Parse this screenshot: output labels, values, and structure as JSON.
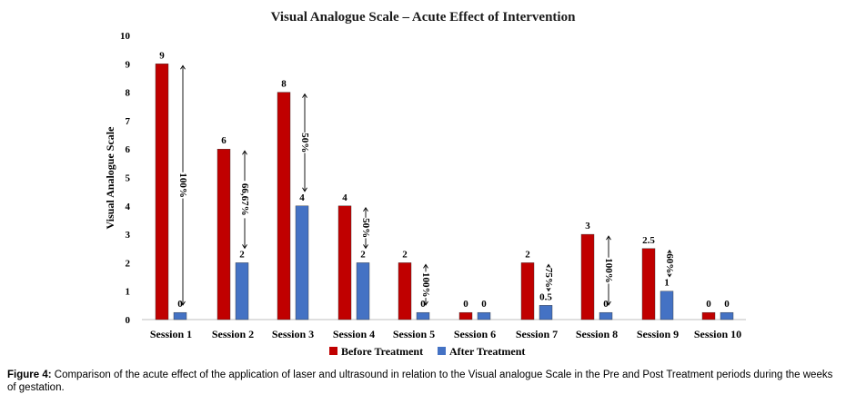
{
  "chart_data": {
    "type": "bar",
    "title": "Visual Analogue Scale – Acute Effect of Intervention",
    "ylabel": "Visual Analogue Scale",
    "xlabel": "",
    "ylim": [
      0,
      10
    ],
    "yticks": [
      "0",
      "1",
      "2",
      "3",
      "4",
      "5",
      "6",
      "7",
      "8",
      "9",
      "10"
    ],
    "categories": [
      "Session 1",
      "Session 2",
      "Session 3",
      "Session 4",
      "Session 5",
      "Session 6",
      "Session 7",
      "Session 8",
      "Session 9",
      "Session 10"
    ],
    "series": [
      {
        "name": "Before Treatment",
        "color": "#c00000",
        "values": [
          9,
          6,
          8,
          4,
          2,
          0,
          2,
          3,
          2.5,
          0
        ],
        "labels": [
          "9",
          "6",
          "8",
          "4",
          "2",
          "0",
          "2",
          "3",
          "2.5",
          "0"
        ]
      },
      {
        "name": "After Treatment",
        "color": "#4472c4",
        "values": [
          0,
          2,
          4,
          2,
          0,
          0,
          0.5,
          0,
          1,
          0
        ],
        "labels": [
          "0",
          "2",
          "4",
          "2",
          "0",
          "0",
          "0.5",
          "0",
          "1",
          "0"
        ]
      }
    ],
    "reductions": [
      "100%",
      "66,67%",
      "50%",
      "50%",
      "100%",
      "",
      "75%",
      "100%",
      "60%",
      ""
    ],
    "legend": "bottom",
    "grid": false
  },
  "caption": {
    "label": "Figure 4:",
    "text": "Comparison of the acute effect of the application of laser and ultrasound in relation to the Visual analogue Scale in the Pre and Post Treatment periods during the weeks of gestation."
  }
}
